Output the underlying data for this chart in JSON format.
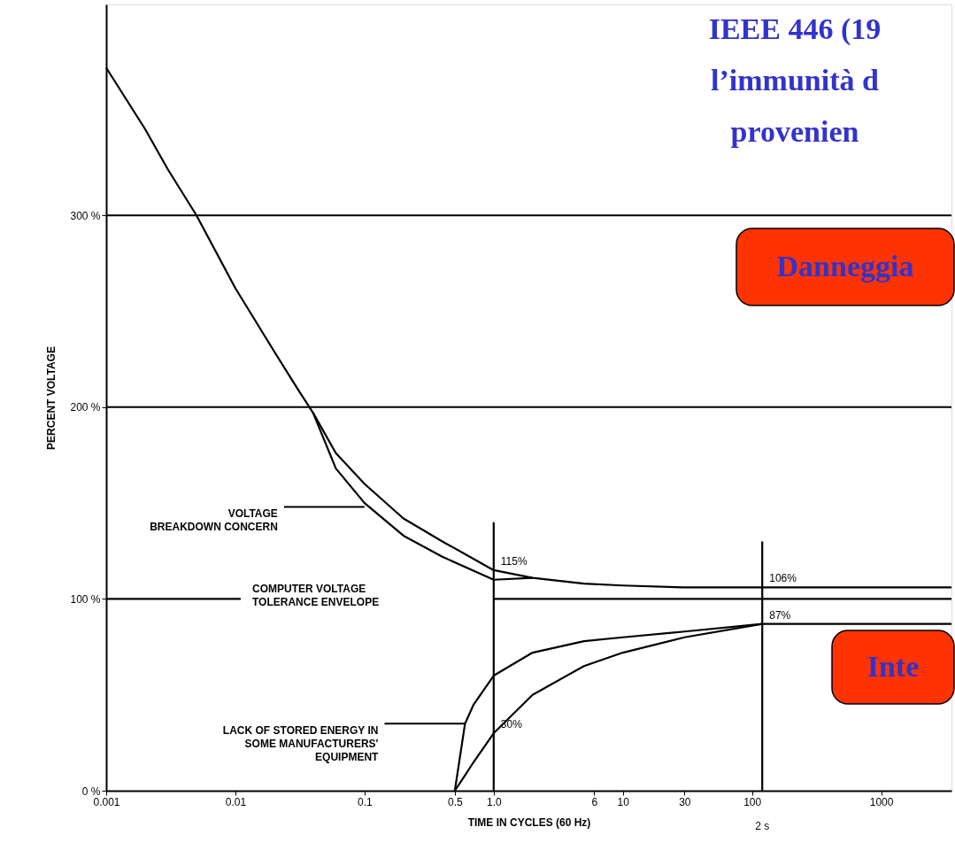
{
  "chart_data": {
    "type": "line",
    "title": "IEEE 446 (19\nl’immunità d\nprovenien",
    "xlabel": "TIME IN CYCLES (60 Hz)",
    "ylabel": "PERCENT VOLTAGE",
    "log": "x",
    "grid": false,
    "marker": "none",
    "line_style": "solid",
    "xlim": [
      0.001,
      3500
    ],
    "ylim": [
      0,
      410
    ],
    "xticks": [
      0.001,
      0.01,
      0.1,
      0.5,
      {
        "value": 1,
        "label": "1.0"
      },
      6,
      10,
      30,
      100,
      1000
    ],
    "yticks": [
      {
        "value": 0,
        "label": "0 %"
      },
      {
        "value": 100,
        "label": "100 %"
      },
      {
        "value": 200,
        "label": "200 %"
      },
      {
        "value": 300,
        "label": "300 %"
      }
    ],
    "ref_lines": [
      {
        "axis": "y",
        "value": 300,
        "color": "#000000"
      },
      {
        "axis": "y",
        "value": 200,
        "color": "#000000"
      }
    ],
    "series": [
      {
        "color": "#000000",
        "x": [
          0.001,
          0.002,
          0.003,
          0.005,
          0.01,
          0.02,
          0.03,
          0.04,
          0.06,
          0.1,
          0.2,
          0.4,
          1,
          2,
          5,
          10,
          30,
          3500
        ],
        "values": [
          377,
          345,
          324,
          300,
          262,
          229,
          210,
          197,
          176,
          160,
          142,
          130,
          115,
          111,
          108,
          107,
          106,
          106
        ]
      },
      {
        "color": "#000000",
        "x": [
          0.04,
          0.06,
          0.1,
          0.2,
          0.4,
          1,
          2
        ],
        "values": [
          197,
          168,
          150,
          133,
          122,
          110,
          111
        ]
      },
      {
        "color": "#000000",
        "x": [
          0.5,
          0.6,
          0.7,
          1,
          2,
          5,
          10,
          30,
          120,
          3500
        ],
        "values": [
          0,
          35,
          45,
          60,
          72,
          78,
          80,
          83,
          87,
          87
        ]
      },
      {
        "color": "#000000",
        "x": [
          0.5,
          0.6,
          0.7,
          1,
          2,
          5,
          10,
          30,
          120
        ],
        "values": [
          0,
          8,
          15,
          30,
          50,
          65,
          72,
          80,
          87
        ]
      },
      {
        "color": "#000000",
        "x": [
          0.001,
          0.011,
          0.1,
          1,
          3500
        ],
        "values": [
          100,
          100,
          null,
          100,
          100
        ]
      },
      {
        "color": "#000000",
        "x": [
          1,
          1
        ],
        "values": [
          0,
          140
        ]
      },
      {
        "color": "#000000",
        "x": [
          120,
          120
        ],
        "values": [
          0,
          130
        ]
      }
    ],
    "annotations": [
      {
        "text": "VOLTAGE\nBREAKDOWN CONCERN",
        "x": 0.1,
        "y": 148
      },
      "COMPUTER VOLTAGE\nTOLERANCE ENVELOPE",
      {
        "text": "LACK OF STORED ENERGY IN\nSOME MANUFACTURERS'\nEQUIPMENT",
        "x": 0.6,
        "y": 35
      },
      "Danneggia",
      "Inte",
      {
        "text": "115%",
        "x": 1,
        "y": 115
      },
      {
        "text": "106%",
        "x": 120,
        "y": 106
      },
      {
        "text": "87%",
        "x": 120,
        "y": 87
      },
      {
        "text": "30%",
        "x": 1,
        "y": 30
      },
      {
        "text": "2 s",
        "x": 120,
        "y": 0
      }
    ]
  }
}
